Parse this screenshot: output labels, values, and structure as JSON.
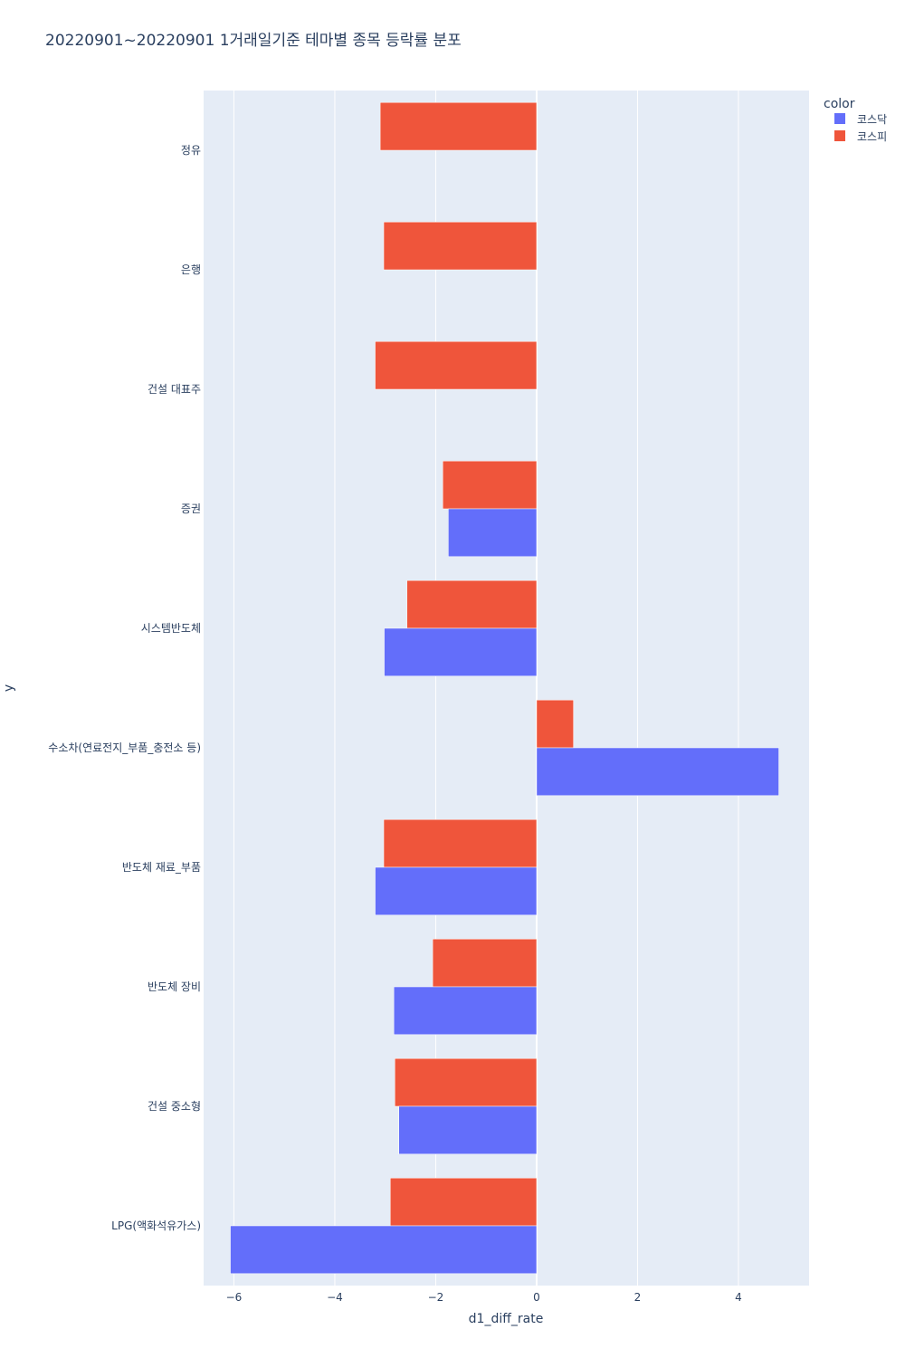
{
  "chart_data": {
    "type": "bar",
    "orientation": "horizontal",
    "barmode": "group",
    "title": "20220901~20220901 1거래일기준 테마별 종목 등락률 분포",
    "xlabel": "d1_diff_rate",
    "ylabel": "y",
    "xlim": [
      -6.6,
      5.4
    ],
    "xticks": [
      -6,
      -4,
      -2,
      0,
      2,
      4
    ],
    "xtick_labels": [
      "−6",
      "−4",
      "−2",
      "0",
      "2",
      "4"
    ],
    "grid": true,
    "legend": {
      "title": "color",
      "placement": "top-right"
    },
    "categories": [
      "정유",
      "은행",
      "건설 대표주",
      "증권",
      "시스템반도체",
      "수소차(연료전지_부품_충전소 등)",
      "반도체 재료_부품",
      "반도체 장비",
      "건설 중소형",
      "LPG(액화석유가스)"
    ],
    "series": [
      {
        "name": "코스닥",
        "color": "#636efa",
        "values": [
          null,
          null,
          null,
          -1.75,
          -3.02,
          4.8,
          -3.2,
          -2.83,
          -2.73,
          -6.07
        ]
      },
      {
        "name": "코스피",
        "color": "#ef553b",
        "values": [
          -3.1,
          -3.03,
          -3.2,
          -1.86,
          -2.57,
          0.73,
          -3.03,
          -2.06,
          -2.81,
          -2.9
        ]
      }
    ]
  }
}
